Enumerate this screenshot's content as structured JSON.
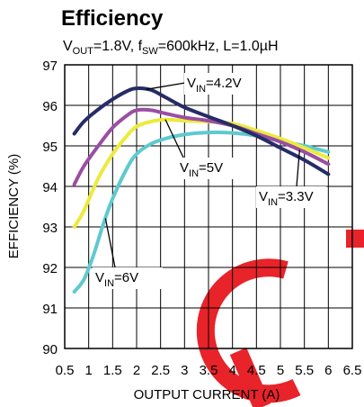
{
  "chart_data": {
    "type": "line",
    "title": "Efficiency",
    "subtitle": {
      "vout": "V",
      "vout_sub": "OUT",
      "vout_rest": "=1.8V, ",
      "fsw": "f",
      "fsw_sub": "SW",
      "fsw_rest": "=600kHz, L=1.0µH"
    },
    "xlabel": "OUTPUT CURRENT (A)",
    "ylabel": "EFFICIENCY (%)",
    "xlim": [
      0.5,
      6.5
    ],
    "ylim": [
      90,
      97
    ],
    "x_ticks": [
      "0.5",
      "1",
      "1.5",
      "2",
      "2.5",
      "3",
      "3.5",
      "4",
      "4.5",
      "5",
      "5.5",
      "6",
      "6.5"
    ],
    "y_ticks": [
      "90",
      "91",
      "92",
      "93",
      "94",
      "95",
      "96",
      "97"
    ],
    "grid": true,
    "series": [
      {
        "name": "VIN=4.2V",
        "label_main": "V",
        "label_sub": "IN",
        "label_rest": "=4.2V",
        "color": "#262c66",
        "x": [
          0.7,
          0.9,
          1.2,
          1.5,
          1.8,
          2.0,
          2.3,
          2.6,
          3.0,
          3.5,
          4.0,
          4.5,
          5.0,
          5.5,
          6.0
        ],
        "y": [
          95.3,
          95.6,
          95.9,
          96.15,
          96.35,
          96.42,
          96.38,
          96.2,
          95.95,
          95.72,
          95.5,
          95.25,
          94.95,
          94.65,
          94.3
        ]
      },
      {
        "name": "VIN=3.3V",
        "label_main": "V",
        "label_sub": "IN",
        "label_rest": "=3.3V",
        "color": "#9a4ea3",
        "x": [
          0.7,
          0.9,
          1.2,
          1.5,
          1.8,
          2.0,
          2.3,
          2.6,
          3.0,
          3.5,
          4.0,
          4.5,
          5.0,
          5.5,
          6.0
        ],
        "y": [
          94.05,
          94.5,
          95.0,
          95.45,
          95.75,
          95.88,
          95.88,
          95.8,
          95.7,
          95.62,
          95.5,
          95.3,
          95.1,
          94.85,
          94.55
        ]
      },
      {
        "name": "VIN=5V",
        "label_main": "V",
        "label_sub": "IN",
        "label_rest": "=5V",
        "color": "#ecea3e",
        "x": [
          0.7,
          0.9,
          1.2,
          1.5,
          1.8,
          2.0,
          2.3,
          2.6,
          3.0,
          3.5,
          4.0,
          4.5,
          5.0,
          5.5,
          6.0
        ],
        "y": [
          93.0,
          93.4,
          94.2,
          94.8,
          95.25,
          95.48,
          95.6,
          95.65,
          95.62,
          95.6,
          95.55,
          95.38,
          95.18,
          94.95,
          94.7
        ]
      },
      {
        "name": "VIN=6V",
        "label_main": "V",
        "label_sub": "IN",
        "label_rest": "=6V",
        "color": "#5fc9cf",
        "x": [
          0.7,
          0.9,
          1.1,
          1.3,
          1.5,
          1.8,
          2.0,
          2.3,
          2.6,
          3.0,
          3.5,
          4.0,
          4.5,
          5.0,
          5.5,
          6.0
        ],
        "y": [
          91.4,
          91.7,
          92.3,
          93.05,
          93.7,
          94.45,
          94.8,
          95.05,
          95.18,
          95.28,
          95.33,
          95.32,
          95.25,
          95.12,
          95.0,
          94.85
        ]
      }
    ]
  }
}
